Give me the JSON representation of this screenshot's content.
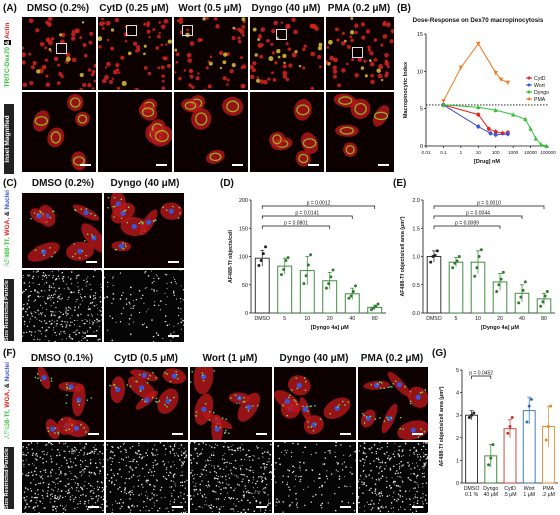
{
  "panel_labels": {
    "a": "(A)",
    "b": "(B)",
    "c": "(C)",
    "d": "(D)",
    "e": "(E)",
    "f": "(F)",
    "g": "(G)"
  },
  "panelA": {
    "columns": [
      "DMSO (0.2%)",
      "CytD (0.25 μM)",
      "Wort (0.5 μM)",
      "Dyngo (40 μM)",
      "PMA (0.2 μM)"
    ],
    "row_labels": {
      "top_parts": [
        "TRITC-Dex70",
        "&",
        "Actin"
      ],
      "bottom": "Inset Magnified"
    }
  },
  "panelC": {
    "columns": [
      "DMSO (0.2%)",
      "Dyngo (40 μM)"
    ],
    "row_labels": {
      "top_parts": [
        "AF488-Tf,",
        "WGA,",
        "&",
        "Nuclei"
      ],
      "bottom": "Size Restricted Particle Analysis"
    }
  },
  "panelF": {
    "columns": [
      "DMSO (0.1%)",
      "CytD (0.5 μM)",
      "Wort (1 μM)",
      "Dyngo (40 μM)",
      "PMA (0.2 μM)"
    ],
    "row_labels": {
      "top_parts": [
        "AF488-Tf,",
        "WGA,",
        "&",
        "Nuclei"
      ],
      "bottom": "Size Restricted Particle Analysis"
    }
  },
  "colors": {
    "red": "#e8231f",
    "green": "#35c23a",
    "blue": "#3b55d6",
    "orange": "#f07b22",
    "dyngo_green": "#4a9a3a"
  },
  "chart_data": [
    {
      "id": "B",
      "type": "line",
      "title": "Dose-Response on Dex70 macropinocytosis",
      "xlabel": "[Drug] nM",
      "ylabel": "Macropinocytic Index",
      "xscale": "log",
      "xlim": [
        0.01,
        100000
      ],
      "ylim": [
        0,
        15
      ],
      "x_ticks": [
        "0.01",
        "0.1",
        "1",
        "10",
        "100",
        "1000",
        "10000",
        "100000"
      ],
      "y_ticks": [
        "0",
        "5",
        "10",
        "15"
      ],
      "baseline": 5.5,
      "legend": "right",
      "series": [
        {
          "name": "CytD",
          "color": "#e8231f",
          "x": [
            0.1,
            10,
            40,
            100,
            250,
            500
          ],
          "y": [
            5.5,
            4.2,
            2.3,
            1.9,
            1.7,
            1.8
          ]
        },
        {
          "name": "Wort",
          "color": "#3b55d6",
          "x": [
            0.1,
            10,
            50,
            100,
            500
          ],
          "y": [
            5.5,
            2.6,
            1.7,
            1.5,
            1.6
          ]
        },
        {
          "name": "Dyngo",
          "color": "#35c23a",
          "x": [
            0.1,
            10,
            100,
            1000,
            5000,
            10000,
            20000,
            40000,
            80000
          ],
          "y": [
            5.5,
            5.2,
            4.8,
            4.2,
            3.6,
            2.3,
            1.0,
            0.2,
            0.0
          ]
        },
        {
          "name": "PMA",
          "color": "#f07b22",
          "x": [
            0.1,
            1,
            10,
            100,
            200,
            500
          ],
          "y": [
            6.0,
            10.5,
            13.7,
            9.8,
            8.9,
            8.5
          ]
        }
      ]
    },
    {
      "id": "D",
      "type": "bar",
      "ylabel": "AF488-Tf objects/cell",
      "xlabel": "[Dyngo 4a] μM",
      "categories": [
        "DMSO",
        "5",
        "10",
        "20",
        "40",
        "80"
      ],
      "values": [
        97,
        83,
        75,
        57,
        34,
        10
      ],
      "errors": [
        14,
        14,
        25,
        15,
        10,
        4
      ],
      "points": [
        [
          84,
          93,
          105,
          117
        ],
        [
          68,
          77,
          93,
          98
        ],
        [
          52,
          66,
          85,
          103
        ],
        [
          44,
          52,
          64,
          76
        ],
        [
          26,
          30,
          38,
          48
        ],
        [
          6,
          9,
          12,
          16
        ]
      ],
      "ylim": [
        0,
        200
      ],
      "y_ticks": [
        "0",
        "50",
        "100",
        "150",
        "200"
      ],
      "colors": [
        "#222222",
        "#2e7d2e",
        "#2e7d2e",
        "#2e7d2e",
        "#2e7d2e",
        "#2e7d2e"
      ],
      "brackets": [
        {
          "from": "DMSO",
          "to": "20",
          "label": "p = 0.0801"
        },
        {
          "from": "DMSO",
          "to": "40",
          "label": "p = 0.0141"
        },
        {
          "from": "DMSO",
          "to": "80",
          "label": "p = 0.0012"
        }
      ]
    },
    {
      "id": "E",
      "type": "bar",
      "ylabel": "AF488-Tf objects/cell area (μm²)",
      "xlabel": "[Dyngo 4a] μM",
      "categories": [
        "DMSO",
        "5",
        "10",
        "20",
        "40",
        "80"
      ],
      "values": [
        1.0,
        0.9,
        0.9,
        0.55,
        0.35,
        0.25
      ],
      "errors": [
        0.1,
        0.08,
        0.2,
        0.15,
        0.15,
        0.1
      ],
      "points": [
        [
          0.9,
          1.0,
          1.02,
          1.1
        ],
        [
          0.8,
          0.88,
          0.92,
          1.0
        ],
        [
          0.65,
          0.8,
          1.0,
          1.12
        ],
        [
          0.38,
          0.5,
          0.6,
          0.72
        ],
        [
          0.18,
          0.28,
          0.4,
          0.55
        ],
        [
          0.12,
          0.2,
          0.3,
          0.38
        ]
      ],
      "ylim": [
        0,
        2.0
      ],
      "y_ticks": [
        "0.0",
        "0.5",
        "1.0",
        "1.5",
        "2.0"
      ],
      "colors": [
        "#222222",
        "#2e7d2e",
        "#2e7d2e",
        "#2e7d2e",
        "#2e7d2e",
        "#2e7d2e"
      ],
      "brackets": [
        {
          "from": "DMSO",
          "to": "20",
          "label": "p = 0.0089"
        },
        {
          "from": "DMSO",
          "to": "40",
          "label": "p = 0.0044"
        },
        {
          "from": "DMSO",
          "to": "80",
          "label": "p = 0.0010"
        }
      ]
    },
    {
      "id": "G",
      "type": "bar",
      "ylabel": "AF488-Tf objects/cell area (μm²)",
      "categories": [
        "DMSO\n0.1 %",
        "Dyngo\n40 μM",
        "CytD\n.5 μM",
        "Wort\n1 μM",
        "PMA\n.2 μM"
      ],
      "values": [
        3.0,
        1.2,
        2.4,
        3.2,
        2.5
      ],
      "errors": [
        0.2,
        0.5,
        0.4,
        0.6,
        0.9
      ],
      "points": [
        [
          2.9,
          3.0,
          3.1
        ],
        [
          0.8,
          1.1,
          1.7
        ],
        [
          2.2,
          2.5,
          2.9
        ],
        [
          2.7,
          3.4,
          3.7
        ],
        [
          1.9,
          2.5,
          3.4
        ]
      ],
      "ylim": [
        0,
        5
      ],
      "y_ticks": [
        "0",
        "1",
        "2",
        "3",
        "4",
        "5"
      ],
      "colors": [
        "#222222",
        "#2e7d2e",
        "#c0392b",
        "#2f6fb0",
        "#e08a2c"
      ],
      "brackets": [
        {
          "from": "DMSO\n0.1 %",
          "to": "Dyngo\n40 μM",
          "label": "p = 0.0452"
        }
      ]
    }
  ]
}
